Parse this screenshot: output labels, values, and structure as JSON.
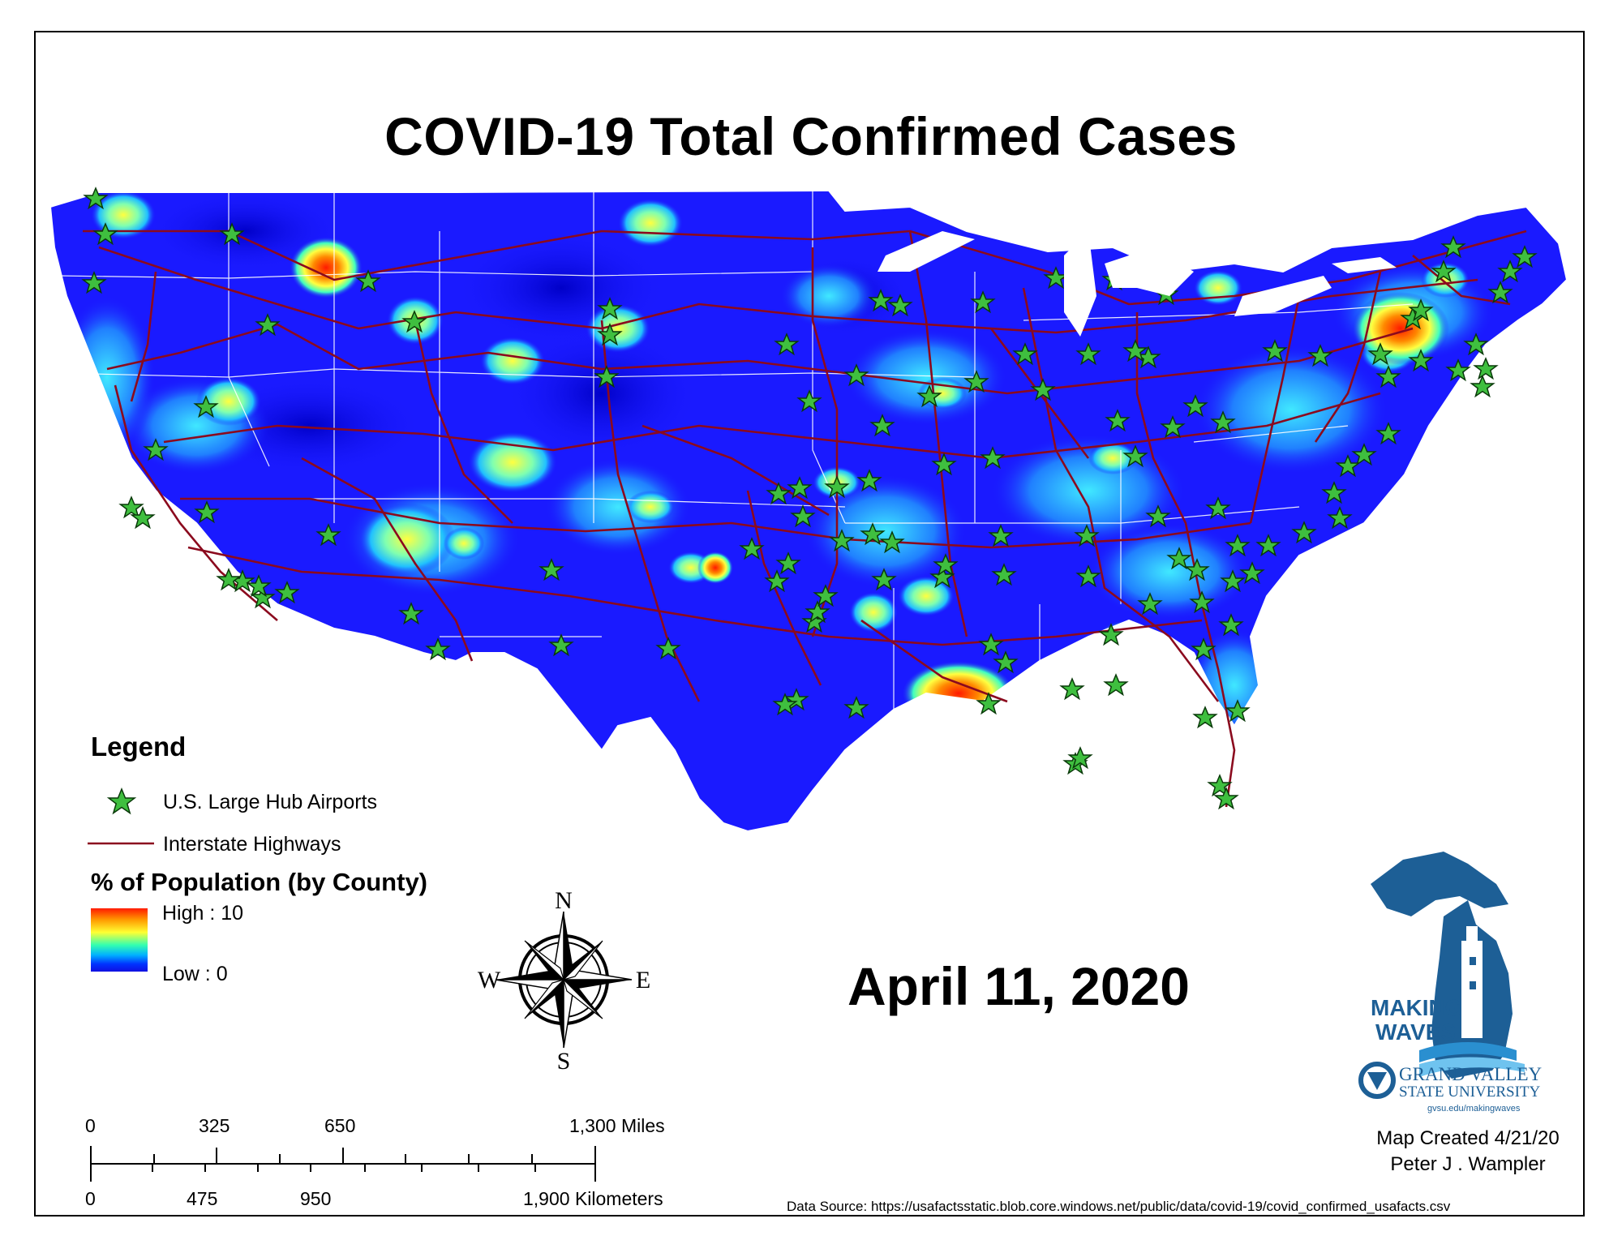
{
  "title": "COVID-19 Total Confirmed Cases",
  "date": "April 11, 2020",
  "legend": {
    "heading": "Legend",
    "airports_label": "U.S. Large Hub Airports",
    "highways_label": "Interstate Highways",
    "population_heading": "% of Population (by County)",
    "high_label": "High : 10",
    "low_label": "Low : 0"
  },
  "compass": {
    "n": "N",
    "s": "S",
    "e": "E",
    "w": "W"
  },
  "scale": {
    "miles": [
      "0",
      "325",
      "650",
      "1,300 Miles"
    ],
    "kilometers": [
      "0",
      "475",
      "950",
      "1,900 Kilometers"
    ]
  },
  "logo": {
    "tagline_1": "MAKING",
    "tagline_2": "WAVES",
    "university_1": "GRAND VALLEY",
    "university_2": "STATE UNIVERSITY",
    "url": "gvsu.edu/makingwaves"
  },
  "credit": {
    "created": "Map Created 4/21/20",
    "author": "Peter J . Wampler"
  },
  "source": "Data Source: https://usafactsstatic.blob.core.windows.net/public/data/covid-19/covid_confirmed_usafacts.csv",
  "colors": {
    "map_base": "#1a1aff",
    "highway": "#8b0a1e",
    "airport_star": "#3fbf3f",
    "hotspot": "#ff2a00",
    "logo_blue": "#1d5f96"
  },
  "icons": [
    "airport-star-icon",
    "compass-rose-icon",
    "michigan-lighthouse-logo-icon"
  ]
}
